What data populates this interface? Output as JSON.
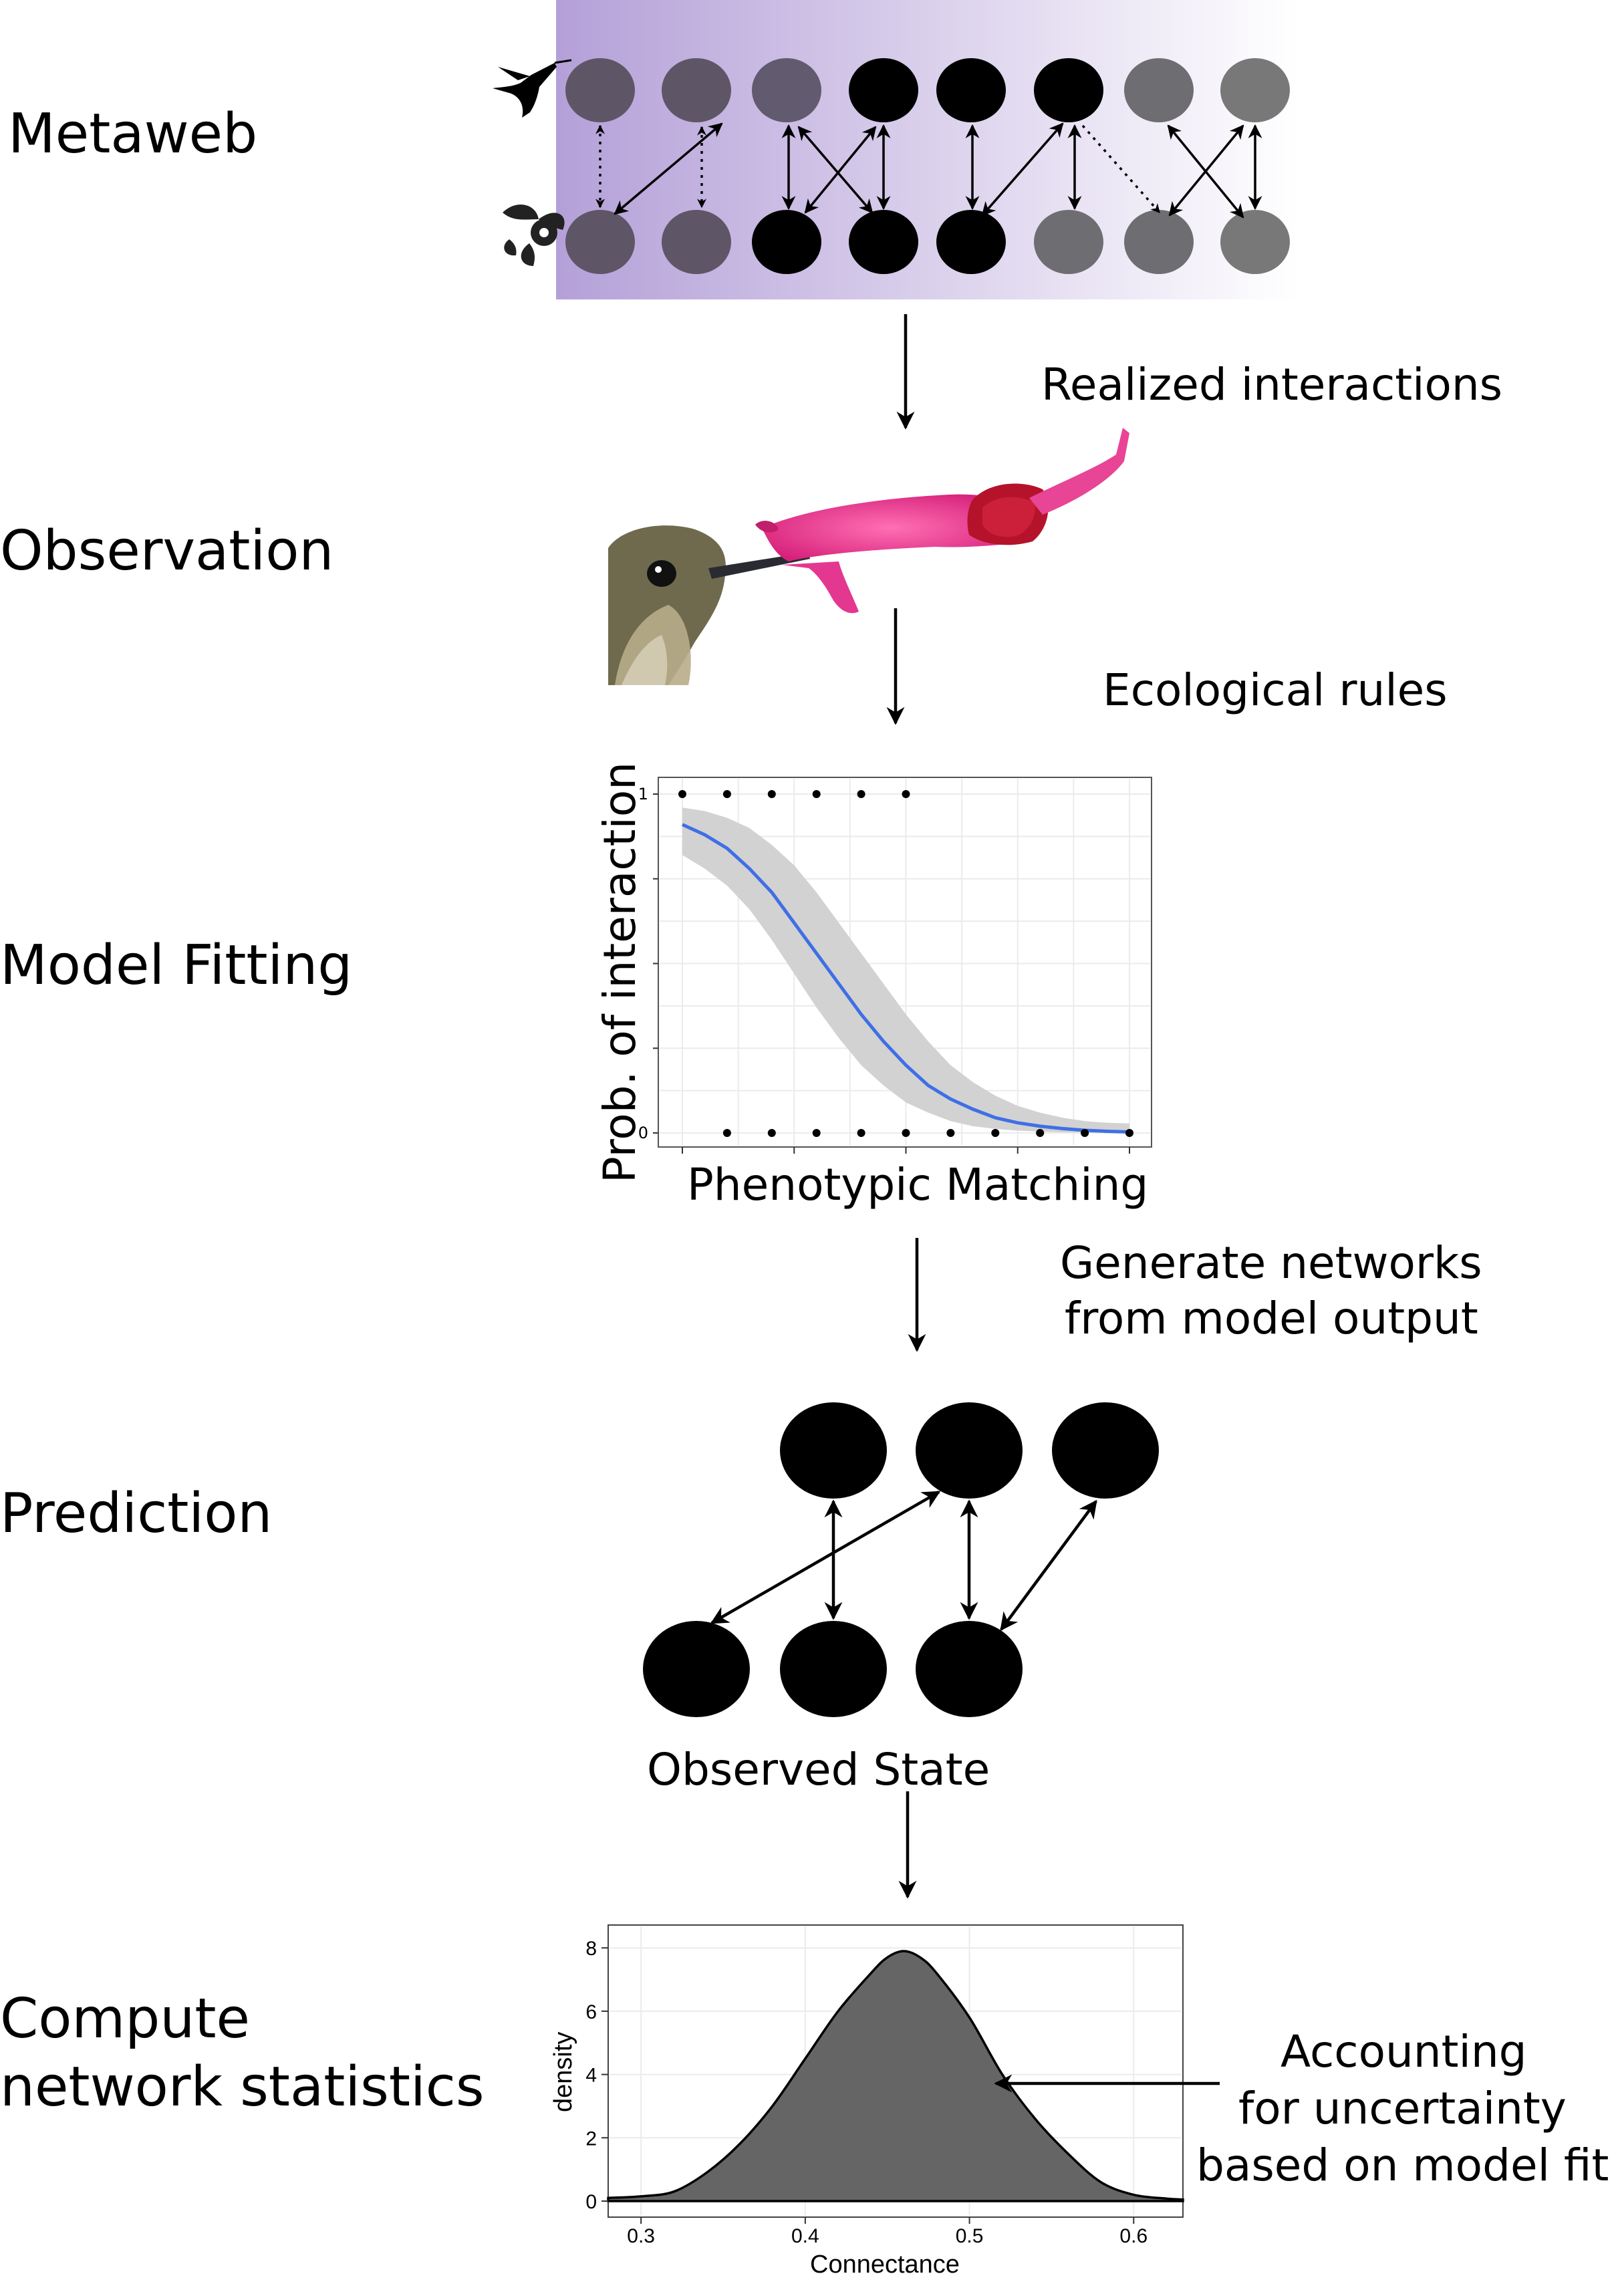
{
  "stages": {
    "metaweb": "Metaweb",
    "observation": "Observation",
    "model_fitting": "Model Fitting",
    "prediction": "Prediction",
    "compute_line1": "Compute",
    "compute_line2": "network statistics"
  },
  "annotations": {
    "realized": "Realized interactions",
    "ecological": "Ecological rules",
    "generate_line1": "Generate networks",
    "generate_line2": "from model output",
    "observed_state": "Observed State",
    "accounting_line1": "Accounting",
    "accounting_line2": "for uncertainty",
    "accounting_line3": "based on model fit"
  },
  "colors": {
    "metaweb_gradient_start": "#b4a0d8",
    "metaweb_gradient_end": "#ffffff",
    "node_black": "#000000",
    "node_dark": "#5e5666",
    "node_grey": "#6e6e72",
    "fit_curve": "#3f6fe6",
    "fit_band": "#d2d2d2",
    "density_fill": "#656565"
  },
  "metaweb": {
    "hummingbird_icon": "hummingbird-icon",
    "flower_icon": "flower-icon"
  },
  "chart_data": [
    {
      "type": "line",
      "xlabel": "Phenotypic Matching",
      "ylabel": "Prob. of interaction",
      "y_ticks": [
        "0",
        "",
        "",
        "",
        "1"
      ],
      "ylim": [
        0,
        1
      ],
      "xlim": [
        0,
        1
      ],
      "grid": true,
      "series": [
        {
          "x": [
            0,
            0.05,
            0.1,
            0.15,
            0.2,
            0.25,
            0.3,
            0.35,
            0.4,
            0.45,
            0.5,
            0.55,
            0.6,
            0.65,
            0.7,
            0.75,
            0.8,
            0.85,
            0.9,
            0.95,
            1.0
          ],
          "y": [
            0.91,
            0.88,
            0.84,
            0.78,
            0.71,
            0.62,
            0.53,
            0.44,
            0.35,
            0.27,
            0.2,
            0.14,
            0.1,
            0.07,
            0.045,
            0.03,
            0.02,
            0.013,
            0.008,
            0.005,
            0.003
          ],
          "band_upper": [
            0.96,
            0.95,
            0.93,
            0.9,
            0.85,
            0.79,
            0.71,
            0.62,
            0.53,
            0.44,
            0.35,
            0.27,
            0.2,
            0.15,
            0.11,
            0.08,
            0.06,
            0.045,
            0.035,
            0.03,
            0.028
          ],
          "band_lower": [
            0.82,
            0.78,
            0.73,
            0.66,
            0.57,
            0.47,
            0.37,
            0.28,
            0.2,
            0.14,
            0.09,
            0.06,
            0.035,
            0.02,
            0.012,
            0.007,
            0.004,
            0.002,
            0.001,
            0.0005,
            0.0002
          ]
        }
      ],
      "points_at_1": [
        0,
        0.1,
        0.2,
        0.3,
        0.4,
        0.5
      ],
      "points_at_0": [
        0.1,
        0.2,
        0.3,
        0.4,
        0.5,
        0.6,
        0.7,
        0.8,
        0.9,
        1.0
      ]
    },
    {
      "type": "area",
      "xlabel": "Connectance",
      "ylabel": "density",
      "xlim": [
        0.28,
        0.63
      ],
      "ylim": [
        0,
        8.3
      ],
      "x_ticks": [
        "0.3",
        "0.4",
        "0.5",
        "0.6"
      ],
      "x_tick_values": [
        0.3,
        0.4,
        0.5,
        0.6
      ],
      "y_ticks": [
        "0",
        "2",
        "4",
        "6",
        "8"
      ],
      "y_tick_values": [
        0,
        2,
        4,
        6,
        8
      ],
      "grid": true,
      "x": [
        0.28,
        0.3,
        0.32,
        0.34,
        0.36,
        0.38,
        0.4,
        0.42,
        0.44,
        0.45,
        0.46,
        0.47,
        0.48,
        0.5,
        0.52,
        0.54,
        0.56,
        0.58,
        0.6,
        0.62,
        0.63
      ],
      "y": [
        0.1,
        0.15,
        0.3,
        0.9,
        1.8,
        3.0,
        4.5,
        6.0,
        7.2,
        7.7,
        7.9,
        7.7,
        7.2,
        5.8,
        4.0,
        2.6,
        1.5,
        0.6,
        0.2,
        0.08,
        0.05
      ]
    }
  ]
}
